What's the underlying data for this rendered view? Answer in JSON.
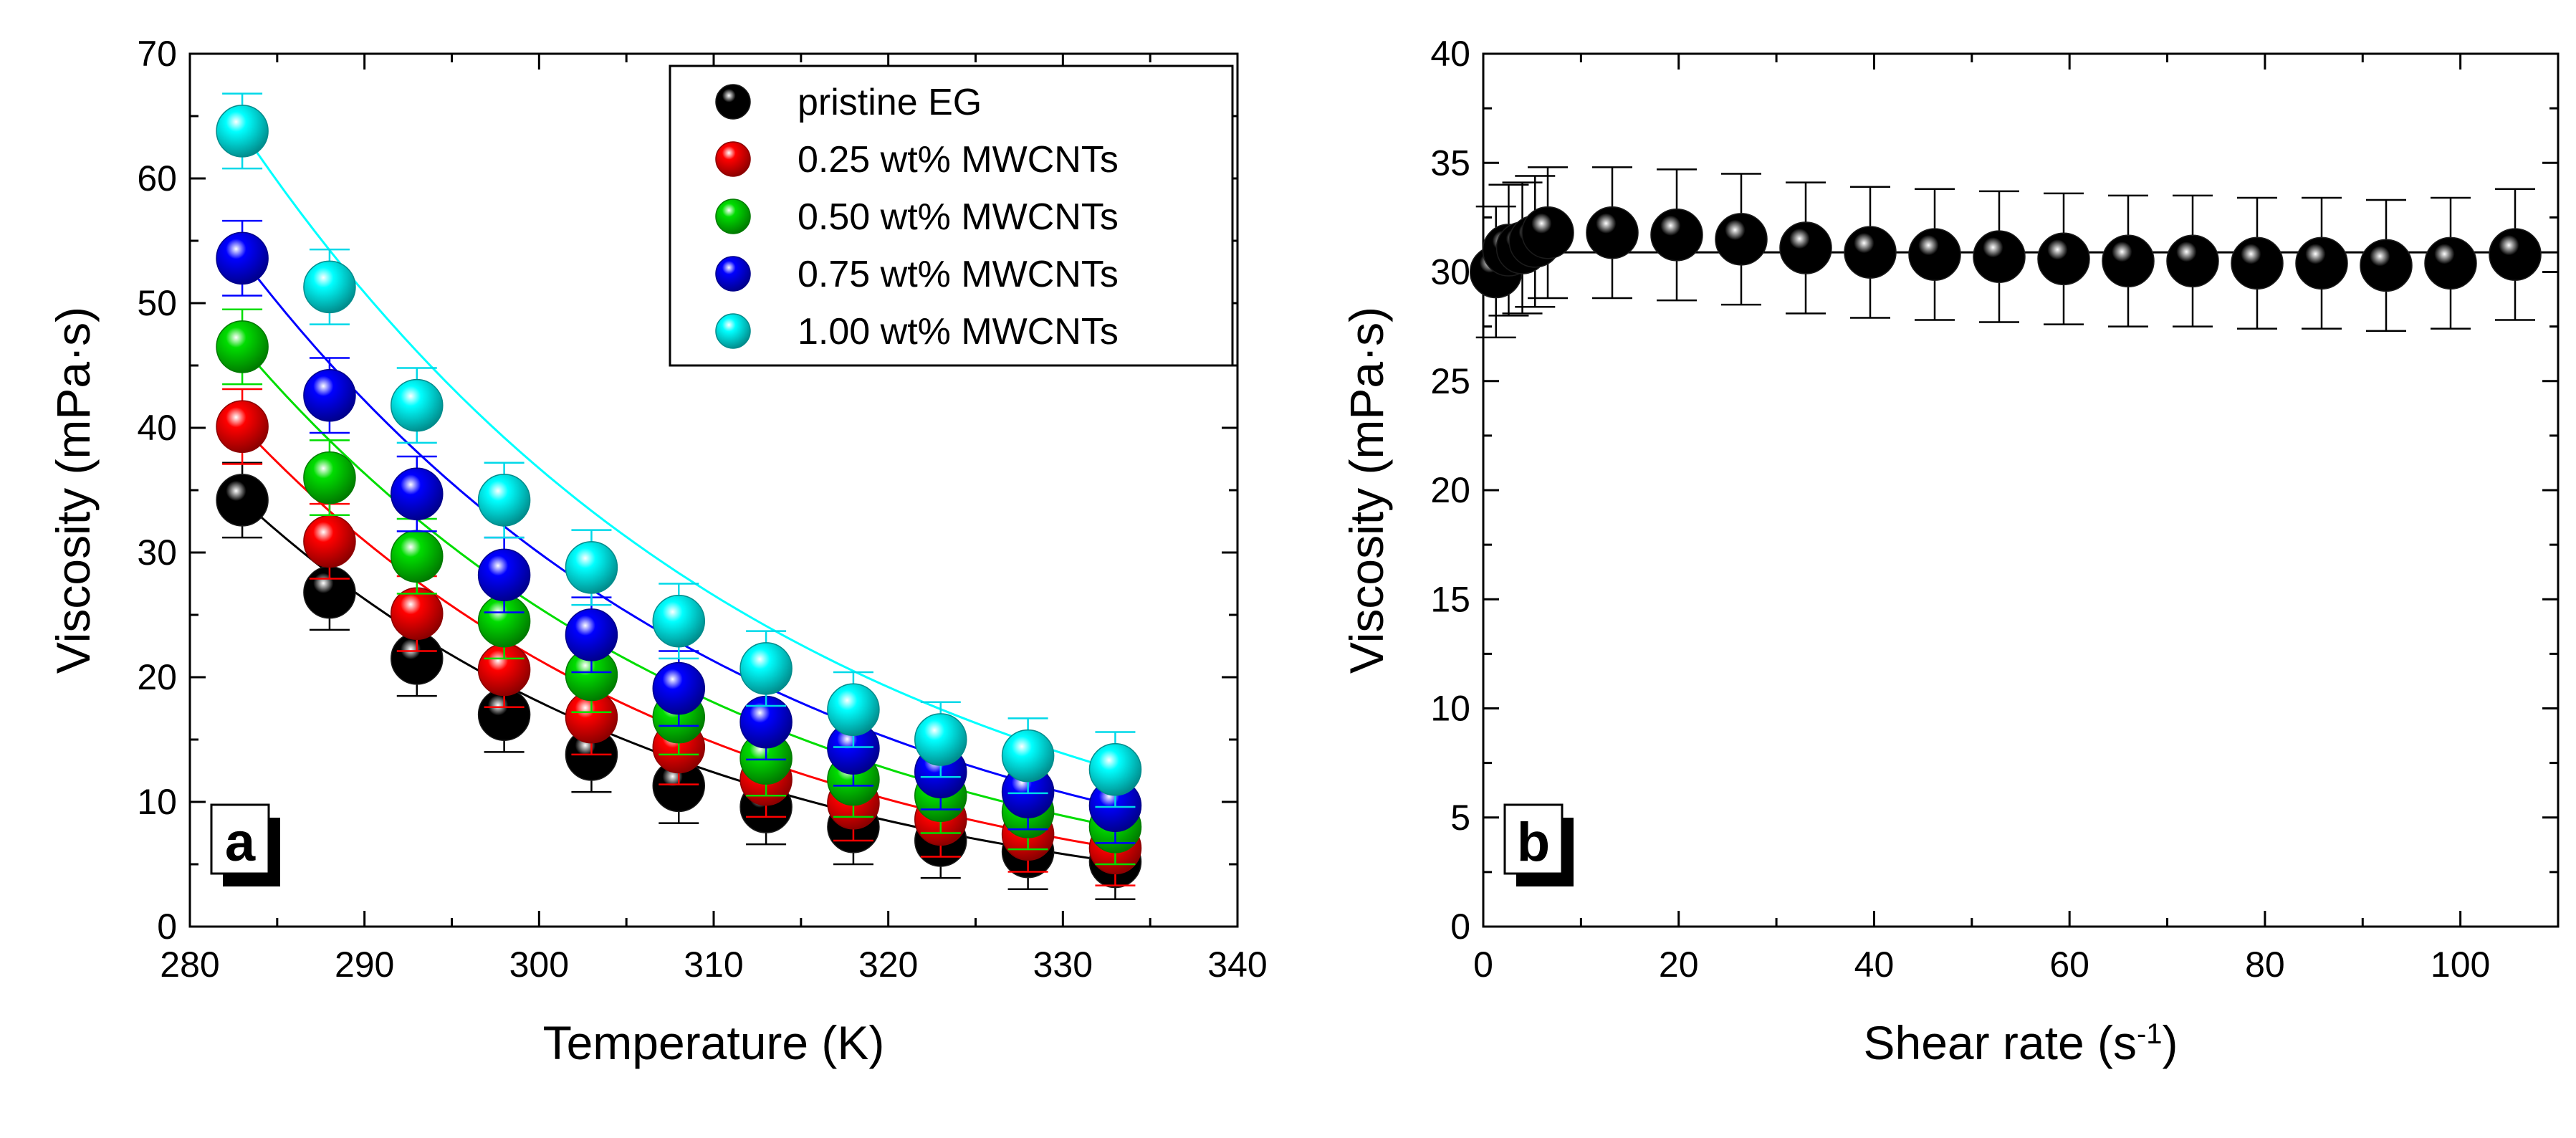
{
  "chart_data": [
    {
      "type": "scatter",
      "panel_label": "a",
      "title": "",
      "xlabel": "Temperature (K)",
      "ylabel": "Viscosity (mPa·s)",
      "xlim": [
        280,
        340
      ],
      "ylim": [
        0,
        70
      ],
      "xticks": [
        280,
        290,
        300,
        310,
        320,
        330,
        340
      ],
      "yticks": [
        0,
        10,
        20,
        30,
        40,
        50,
        60,
        70
      ],
      "grid": false,
      "legend_position": "top-right",
      "fit_lines": true,
      "x": [
        283,
        288,
        293,
        298,
        303,
        308,
        313,
        318,
        323,
        328,
        333
      ],
      "series": [
        {
          "name": "pristine EG",
          "color": "#000000",
          "values": [
            34.2,
            26.8,
            21.5,
            17.0,
            13.8,
            11.3,
            9.6,
            8.0,
            6.9,
            6.0,
            5.2
          ],
          "errors": [
            3.0,
            3.0,
            3.0,
            3.0,
            3.0,
            3.0,
            3.0,
            3.0,
            3.0,
            3.0,
            3.0
          ]
        },
        {
          "name": "0.25 wt% MWCNTs",
          "color": "#ff0000",
          "values": [
            40.1,
            30.9,
            25.1,
            20.6,
            16.8,
            14.4,
            11.8,
            9.9,
            8.6,
            7.4,
            6.3
          ],
          "errors": [
            3.0,
            3.0,
            3.0,
            3.0,
            3.0,
            3.0,
            3.0,
            3.0,
            3.0,
            3.0,
            3.0
          ]
        },
        {
          "name": "0.50 wt% MWCNTs",
          "color": "#00dd00",
          "values": [
            46.5,
            36.0,
            29.7,
            24.5,
            20.2,
            16.8,
            13.5,
            11.8,
            10.5,
            9.2,
            8.0
          ],
          "errors": [
            3.0,
            3.0,
            3.0,
            3.0,
            3.0,
            3.0,
            3.0,
            3.0,
            3.0,
            3.0,
            3.0
          ]
        },
        {
          "name": "0.75 wt% MWCNTs",
          "color": "#0000ff",
          "values": [
            53.6,
            42.6,
            34.7,
            28.2,
            23.4,
            19.1,
            16.4,
            14.3,
            12.4,
            10.8,
            9.7
          ],
          "errors": [
            3.0,
            3.0,
            3.0,
            3.0,
            3.0,
            3.0,
            3.0,
            3.0,
            3.0,
            3.0,
            3.0
          ]
        },
        {
          "name": "1.00 wt% MWCNTs",
          "color": "#00ffff",
          "values": [
            63.8,
            51.3,
            41.8,
            34.2,
            28.8,
            24.5,
            20.7,
            17.4,
            15.0,
            13.7,
            12.6
          ],
          "errors": [
            3.0,
            3.0,
            3.0,
            3.0,
            3.0,
            3.0,
            3.0,
            3.0,
            3.0,
            3.0,
            3.0
          ]
        }
      ]
    },
    {
      "type": "scatter",
      "panel_label": "b",
      "title": "",
      "xlabel": "Shear rate (s",
      "xlabel_superscript": "-1",
      "xlabel_suffix": ")",
      "ylabel": "Viscosity (mPa·s)",
      "xlim": [
        0,
        110
      ],
      "ylim": [
        0,
        40
      ],
      "xticks": [
        0,
        20,
        40,
        60,
        80,
        100
      ],
      "yticks": [
        0,
        5,
        10,
        15,
        20,
        25,
        30,
        35,
        40
      ],
      "grid": false,
      "reference_line": 30.9,
      "series": [
        {
          "name": "Viscosity",
          "color": "#000000",
          "x": [
            1.3,
            2.6,
            4.0,
            5.3,
            6.6,
            13.2,
            19.8,
            26.4,
            33.0,
            39.6,
            46.2,
            52.8,
            59.4,
            66.0,
            72.6,
            79.2,
            85.8,
            92.4,
            99.0,
            105.6
          ],
          "values": [
            30.0,
            31.0,
            31.1,
            31.4,
            31.8,
            31.8,
            31.7,
            31.5,
            31.1,
            30.9,
            30.8,
            30.7,
            30.6,
            30.5,
            30.5,
            30.4,
            30.4,
            30.3,
            30.4,
            30.8
          ],
          "errors": [
            3.0,
            3.0,
            3.0,
            3.0,
            3.0,
            3.0,
            3.0,
            3.0,
            3.0,
            3.0,
            3.0,
            3.0,
            3.0,
            3.0,
            3.0,
            3.0,
            3.0,
            3.0,
            3.0,
            3.0
          ]
        }
      ]
    }
  ]
}
